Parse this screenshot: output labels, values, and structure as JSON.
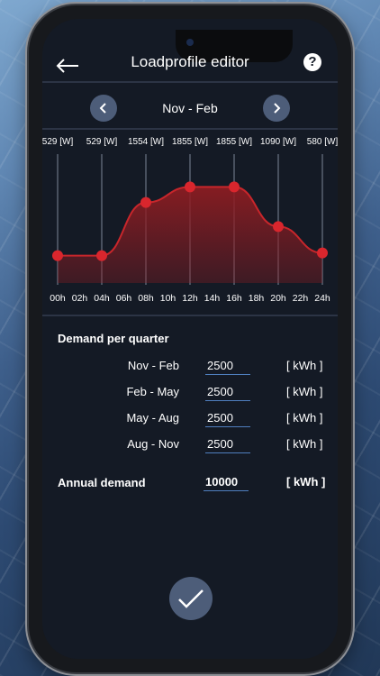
{
  "header": {
    "title": "Loadprofile editor",
    "help_symbol": "?"
  },
  "period": {
    "current": "Nov - Feb"
  },
  "chart_data": {
    "type": "area",
    "x_ticks": [
      "00h",
      "02h",
      "04h",
      "06h",
      "08h",
      "10h",
      "12h",
      "14h",
      "16h",
      "18h",
      "20h",
      "22h",
      "24h"
    ],
    "points": [
      {
        "hour": 0,
        "value": 529,
        "label": "529 [W]"
      },
      {
        "hour": 4,
        "value": 529,
        "label": "529 [W]"
      },
      {
        "hour": 8,
        "value": 1554,
        "label": "1554 [W]"
      },
      {
        "hour": 12,
        "value": 1855,
        "label": "1855 [W]"
      },
      {
        "hour": 16,
        "value": 1855,
        "label": "1855 [W]"
      },
      {
        "hour": 20,
        "value": 1090,
        "label": "1090 [W]"
      },
      {
        "hour": 24,
        "value": 580,
        "label": "580 [W]"
      }
    ],
    "ylim": [
      0,
      2400
    ],
    "colors": {
      "line": "#c8262b",
      "fill": "#8b1c22",
      "point": "#d9262d"
    }
  },
  "demand": {
    "title": "Demand per quarter",
    "rows": [
      {
        "label": "Nov - Feb",
        "value": "2500",
        "unit": "[ kWh ]"
      },
      {
        "label": "Feb - May",
        "value": "2500",
        "unit": "[ kWh ]"
      },
      {
        "label": "May - Aug",
        "value": "2500",
        "unit": "[ kWh ]"
      },
      {
        "label": "Aug - Nov",
        "value": "2500",
        "unit": "[ kWh ]"
      }
    ],
    "annual": {
      "label": "Annual demand",
      "value": "10000",
      "unit": "[ kWh ]"
    }
  },
  "icons": {
    "back": "back-arrow-icon",
    "help": "help-icon",
    "prev": "chevron-left-icon",
    "next": "chevron-right-icon",
    "confirm": "checkmark-icon"
  }
}
